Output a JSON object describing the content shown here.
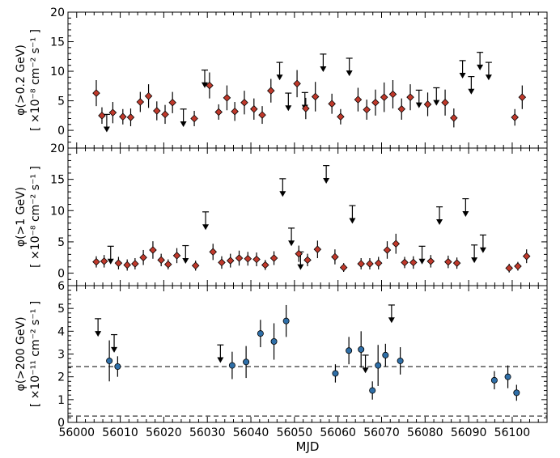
{
  "chart_data": [
    {
      "type": "scatter",
      "panel": "top",
      "ylabel_main": "φ(>0.2 GeV)",
      "ylabel_units": "[ ×10⁻⁸ cm⁻² s⁻¹ ]",
      "ylim": [
        -3,
        20
      ],
      "yticks": [
        0,
        5,
        10,
        15,
        20
      ],
      "ytick_labels": [
        "0",
        "5",
        "10",
        "15",
        "20"
      ],
      "marker_color": "#c0392b",
      "points": [
        {
          "x": 56004.5,
          "y": 6.3,
          "err": 2.2
        },
        {
          "x": 56005.8,
          "y": 2.5,
          "err": 1.4
        },
        {
          "x": 56008.3,
          "y": 3.0,
          "err": 1.8
        },
        {
          "x": 56010.6,
          "y": 2.3,
          "err": 1.3
        },
        {
          "x": 56012.4,
          "y": 2.2,
          "err": 1.5
        },
        {
          "x": 56014.6,
          "y": 4.8,
          "err": 1.7
        },
        {
          "x": 56016.5,
          "y": 5.8,
          "err": 2.0
        },
        {
          "x": 56018.4,
          "y": 3.3,
          "err": 1.6
        },
        {
          "x": 56020.3,
          "y": 2.7,
          "err": 1.6
        },
        {
          "x": 56022.0,
          "y": 4.7,
          "err": 1.8
        },
        {
          "x": 56027.0,
          "y": 2.0,
          "err": 1.3
        },
        {
          "x": 56030.5,
          "y": 7.6,
          "err": 2.2
        },
        {
          "x": 56032.6,
          "y": 3.1,
          "err": 1.3
        },
        {
          "x": 56034.5,
          "y": 5.5,
          "err": 2.1
        },
        {
          "x": 56036.3,
          "y": 3.2,
          "err": 1.6
        },
        {
          "x": 56038.5,
          "y": 4.7,
          "err": 2.0
        },
        {
          "x": 56040.7,
          "y": 3.6,
          "err": 1.8
        },
        {
          "x": 56042.6,
          "y": 2.6,
          "err": 1.5
        },
        {
          "x": 56044.6,
          "y": 6.7,
          "err": 2.0
        },
        {
          "x": 56050.6,
          "y": 7.9,
          "err": 2.3
        },
        {
          "x": 56052.6,
          "y": 3.7,
          "err": 1.8
        },
        {
          "x": 56054.8,
          "y": 5.7,
          "err": 2.5
        },
        {
          "x": 56058.6,
          "y": 4.5,
          "err": 1.7
        },
        {
          "x": 56060.6,
          "y": 2.3,
          "err": 1.3
        },
        {
          "x": 56064.6,
          "y": 5.2,
          "err": 2.0
        },
        {
          "x": 56066.6,
          "y": 3.5,
          "err": 1.7
        },
        {
          "x": 56068.6,
          "y": 4.7,
          "err": 2.2
        },
        {
          "x": 56070.6,
          "y": 5.6,
          "err": 2.5
        },
        {
          "x": 56072.6,
          "y": 6.1,
          "err": 2.4
        },
        {
          "x": 56074.6,
          "y": 3.6,
          "err": 1.8
        },
        {
          "x": 56076.6,
          "y": 5.6,
          "err": 2.2
        },
        {
          "x": 56080.6,
          "y": 4.4,
          "err": 2.0
        },
        {
          "x": 56084.6,
          "y": 4.7,
          "err": 2.2
        },
        {
          "x": 56086.6,
          "y": 2.1,
          "err": 1.6
        },
        {
          "x": 56100.6,
          "y": 2.2,
          "err": 1.4
        },
        {
          "x": 56102.3,
          "y": 5.6,
          "err": 2.0
        }
      ],
      "upper_limits": [
        {
          "x": 56006.9,
          "y": 2.7
        },
        {
          "x": 56024.5,
          "y": 3.6
        },
        {
          "x": 56029.4,
          "y": 10.2
        },
        {
          "x": 56046.6,
          "y": 11.5
        },
        {
          "x": 56048.6,
          "y": 6.3
        },
        {
          "x": 56052.4,
          "y": 6.4
        },
        {
          "x": 56056.6,
          "y": 12.9
        },
        {
          "x": 56062.6,
          "y": 12.2
        },
        {
          "x": 56078.6,
          "y": 6.8
        },
        {
          "x": 56082.6,
          "y": 7.2
        },
        {
          "x": 56088.6,
          "y": 11.8
        },
        {
          "x": 56090.6,
          "y": 9.1
        },
        {
          "x": 56092.6,
          "y": 13.2
        },
        {
          "x": 56094.6,
          "y": 11.5
        }
      ]
    },
    {
      "type": "scatter",
      "panel": "middle",
      "ylabel_main": "φ(>1 GeV)",
      "ylabel_units": "[ ×10⁻⁸ cm⁻² s⁻¹ ]",
      "ylim": [
        -2,
        20
      ],
      "yticks": [
        0,
        5,
        10,
        15,
        20
      ],
      "ytick_labels": [
        "0",
        "5",
        "10",
        "15",
        "20"
      ],
      "marker_color": "#c0392b",
      "points": [
        {
          "x": 56004.5,
          "y": 1.8,
          "err": 0.9
        },
        {
          "x": 56006.3,
          "y": 1.9,
          "err": 1.0
        },
        {
          "x": 56009.6,
          "y": 1.6,
          "err": 1.0
        },
        {
          "x": 56011.6,
          "y": 1.3,
          "err": 0.9
        },
        {
          "x": 56013.4,
          "y": 1.5,
          "err": 0.9
        },
        {
          "x": 56015.3,
          "y": 2.5,
          "err": 1.2
        },
        {
          "x": 56017.5,
          "y": 3.7,
          "err": 1.4
        },
        {
          "x": 56019.4,
          "y": 2.1,
          "err": 1.0
        },
        {
          "x": 56021.0,
          "y": 1.4,
          "err": 0.8
        },
        {
          "x": 56023.0,
          "y": 2.8,
          "err": 1.2
        },
        {
          "x": 56027.3,
          "y": 1.2,
          "err": 0.8
        },
        {
          "x": 56031.3,
          "y": 3.4,
          "err": 1.3
        },
        {
          "x": 56033.3,
          "y": 1.7,
          "err": 1.0
        },
        {
          "x": 56035.3,
          "y": 2.0,
          "err": 1.1
        },
        {
          "x": 56037.3,
          "y": 2.4,
          "err": 1.2
        },
        {
          "x": 56039.3,
          "y": 2.3,
          "err": 1.1
        },
        {
          "x": 56041.3,
          "y": 2.2,
          "err": 1.1
        },
        {
          "x": 56043.3,
          "y": 1.3,
          "err": 0.8
        },
        {
          "x": 56045.3,
          "y": 2.4,
          "err": 1.1
        },
        {
          "x": 56051.0,
          "y": 3.1,
          "err": 1.3
        },
        {
          "x": 56053.0,
          "y": 2.1,
          "err": 1.0
        },
        {
          "x": 56055.3,
          "y": 3.8,
          "err": 1.4
        },
        {
          "x": 56059.3,
          "y": 2.6,
          "err": 1.2
        },
        {
          "x": 56061.3,
          "y": 0.9,
          "err": 0.7
        },
        {
          "x": 56065.3,
          "y": 1.5,
          "err": 0.9
        },
        {
          "x": 56067.3,
          "y": 1.5,
          "err": 0.9
        },
        {
          "x": 56069.3,
          "y": 1.6,
          "err": 1.0
        },
        {
          "x": 56071.3,
          "y": 3.7,
          "err": 1.4
        },
        {
          "x": 56073.3,
          "y": 4.7,
          "err": 1.6
        },
        {
          "x": 56075.3,
          "y": 1.7,
          "err": 0.9
        },
        {
          "x": 56077.3,
          "y": 1.7,
          "err": 1.0
        },
        {
          "x": 56081.3,
          "y": 1.9,
          "err": 1.0
        },
        {
          "x": 56085.3,
          "y": 1.8,
          "err": 1.0
        },
        {
          "x": 56087.3,
          "y": 1.6,
          "err": 0.9
        },
        {
          "x": 56099.3,
          "y": 0.8,
          "err": 0.7
        },
        {
          "x": 56101.3,
          "y": 1.1,
          "err": 0.7
        },
        {
          "x": 56103.3,
          "y": 2.7,
          "err": 1.1
        }
      ],
      "upper_limits": [
        {
          "x": 56007.8,
          "y": 4.3
        },
        {
          "x": 56025.0,
          "y": 4.4
        },
        {
          "x": 56029.6,
          "y": 9.8
        },
        {
          "x": 56047.3,
          "y": 15.1
        },
        {
          "x": 56049.3,
          "y": 7.2
        },
        {
          "x": 56051.4,
          "y": 3.4
        },
        {
          "x": 56057.3,
          "y": 17.2
        },
        {
          "x": 56063.3,
          "y": 10.8
        },
        {
          "x": 56079.3,
          "y": 4.3
        },
        {
          "x": 56083.3,
          "y": 10.6
        },
        {
          "x": 56089.3,
          "y": 11.9
        },
        {
          "x": 56091.3,
          "y": 4.5
        },
        {
          "x": 56093.3,
          "y": 6.1
        }
      ]
    },
    {
      "type": "scatter",
      "panel": "bottom",
      "ylabel_main": "φ(>200 GeV)",
      "ylabel_units": "[ ×10⁻¹¹ cm⁻² s⁻¹ ]",
      "ylim": [
        0,
        6
      ],
      "yticks": [
        0,
        1,
        2,
        3,
        4,
        5,
        6
      ],
      "ytick_labels": [
        "0",
        "1",
        "2",
        "3",
        "4",
        "5",
        "6"
      ],
      "marker_color": "#2f6fa8",
      "dashed_lines": [
        2.45,
        0.28
      ],
      "points": [
        {
          "x": 56007.5,
          "y": 2.7,
          "err": 0.9
        },
        {
          "x": 56009.4,
          "y": 2.45,
          "err": 0.45
        },
        {
          "x": 56035.7,
          "y": 2.5,
          "err": 0.6
        },
        {
          "x": 56038.9,
          "y": 2.65,
          "err": 0.7
        },
        {
          "x": 56042.2,
          "y": 3.9,
          "err": 0.6
        },
        {
          "x": 56045.3,
          "y": 3.55,
          "err": 0.8
        },
        {
          "x": 56048.1,
          "y": 4.45,
          "err": 0.7
        },
        {
          "x": 56059.4,
          "y": 2.15,
          "err": 0.4
        },
        {
          "x": 56062.5,
          "y": 3.15,
          "err": 0.6
        },
        {
          "x": 56065.3,
          "y": 3.2,
          "err": 0.8
        },
        {
          "x": 56067.9,
          "y": 1.4,
          "err": 0.4
        },
        {
          "x": 56069.2,
          "y": 2.5,
          "err": 0.9
        },
        {
          "x": 56070.9,
          "y": 2.95,
          "err": 0.5
        },
        {
          "x": 56074.3,
          "y": 2.7,
          "err": 0.6
        },
        {
          "x": 56095.9,
          "y": 1.85,
          "err": 0.4
        },
        {
          "x": 56099.0,
          "y": 2.0,
          "err": 0.5
        },
        {
          "x": 56101.0,
          "y": 1.3,
          "err": 0.35
        }
      ],
      "upper_limits": [
        {
          "x": 56004.9,
          "y": 4.55
        },
        {
          "x": 56008.6,
          "y": 3.85
        },
        {
          "x": 56033.0,
          "y": 3.4
        },
        {
          "x": 56066.3,
          "y": 2.95
        },
        {
          "x": 56072.3,
          "y": 5.15
        }
      ]
    }
  ],
  "x_axis": {
    "label": "MJD",
    "xlim": [
      55998,
      56108
    ],
    "ticks": [
      56000,
      56010,
      56020,
      56030,
      56040,
      56050,
      56060,
      56070,
      56080,
      56090,
      56100
    ],
    "tick_labels": [
      "56000",
      "56010",
      "56020",
      "56030",
      "56040",
      "56050",
      "56060",
      "56070",
      "56080",
      "56090",
      "56100"
    ]
  }
}
